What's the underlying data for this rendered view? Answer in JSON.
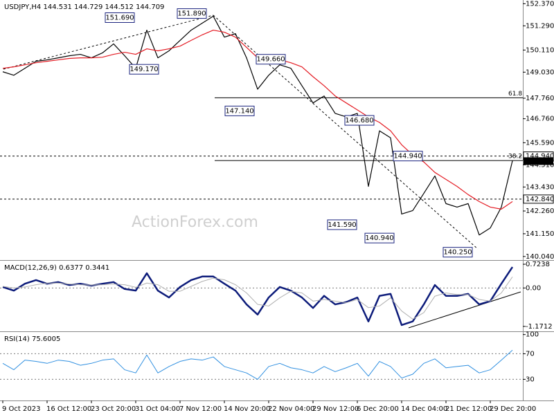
{
  "chart_data": [
    {
      "type": "line",
      "title": "USDJPY,H4 144.531 144.729 144.512 144.709",
      "watermark": "ActionForex.com",
      "categories": [
        "9 Oct 2023",
        null,
        null,
        null,
        "16 Oct 12:00",
        null,
        null,
        null,
        "23 Oct 20:00",
        null,
        null,
        null,
        "31 Oct 04:00",
        null,
        null,
        null,
        "7 Nov 12:00",
        null,
        null,
        null,
        "14 Nov 20:00",
        null,
        null,
        null,
        "22 Nov 04:00",
        null,
        null,
        null,
        "29 Nov 12:00",
        null,
        null,
        null,
        "6 Dec 20:00",
        null,
        null,
        null,
        "14 Dec 04:00",
        null,
        null,
        null,
        "21 Dec 12:00",
        null,
        null,
        null,
        "29 Dec 20:00",
        null,
        null
      ],
      "series": [
        {
          "color": "#000000",
          "values": [
            149.05,
            148.88,
            149.22,
            149.56,
            149.63,
            149.73,
            149.83,
            149.9,
            149.73,
            149.97,
            150.41,
            149.83,
            149.22,
            151.08,
            149.73,
            150.07,
            150.58,
            151.08,
            151.42,
            151.76,
            150.74,
            150.91,
            149.73,
            148.2,
            148.88,
            149.39,
            149.22,
            148.37,
            147.53,
            147.87,
            147.02,
            146.85,
            147.02,
            143.46,
            146.17,
            145.83,
            142.11,
            142.28,
            143.12,
            143.97,
            142.62,
            142.45,
            142.62,
            141.09,
            141.43,
            142.45,
            144.71
          ]
        },
        {
          "color": "#e41b23",
          "values": [
            149.22,
            149.29,
            149.39,
            149.49,
            149.56,
            149.63,
            149.7,
            149.73,
            149.73,
            149.76,
            149.9,
            150.0,
            149.9,
            150.17,
            150.07,
            150.17,
            150.3,
            150.58,
            150.85,
            151.08,
            150.98,
            150.74,
            150.24,
            149.73,
            149.56,
            149.63,
            149.49,
            149.29,
            148.81,
            148.37,
            147.87,
            147.53,
            147.19,
            146.85,
            146.58,
            146.17,
            145.49,
            144.99,
            144.65,
            144.14,
            143.8,
            143.46,
            143.06,
            142.72,
            142.45,
            142.35,
            142.72
          ]
        }
      ],
      "ylim": [
        139.9,
        152.55
      ],
      "yticks": [
        {
          "value": 152.37,
          "label": "152.370"
        },
        {
          "value": 151.29,
          "label": "151.290"
        },
        {
          "value": 150.11,
          "label": "150.110"
        },
        {
          "value": 149.03,
          "label": "149.030"
        },
        {
          "value": 147.76,
          "label": "147.760"
        },
        {
          "value": 146.76,
          "label": "146.760"
        },
        {
          "value": 145.59,
          "label": "145.590"
        },
        {
          "value": 144.51,
          "label": "144.510"
        },
        {
          "value": 143.43,
          "label": "143.430"
        },
        {
          "value": 142.26,
          "label": "142.260"
        },
        {
          "value": 141.15,
          "label": "141.150"
        },
        {
          "value": 140.04,
          "label": "140.040"
        }
      ],
      "fib_levels": [
        {
          "ratio": 61.8,
          "price": 147.78
        },
        {
          "ratio": 38.2,
          "price": 144.72
        }
      ],
      "levels": [
        {
          "value": 144.94,
          "label": "144.940"
        },
        {
          "value": 142.84,
          "label": "142.840"
        }
      ],
      "current": {
        "value": 144.709,
        "label": "144.709"
      },
      "annotations": [
        {
          "value": 151.69,
          "label": "151.690"
        },
        {
          "value": 151.89,
          "label": "151.890"
        },
        {
          "value": 149.17,
          "label": "149.170"
        },
        {
          "value": 149.66,
          "label": "149.660"
        },
        {
          "value": 147.14,
          "label": "147.140"
        },
        {
          "value": 146.68,
          "label": "146.680"
        },
        {
          "value": 144.94,
          "label": "144.940"
        },
        {
          "value": 141.59,
          "label": "141.590"
        },
        {
          "value": 140.94,
          "label": "140.940"
        },
        {
          "value": 140.25,
          "label": "140.250"
        }
      ]
    },
    {
      "type": "line",
      "title": "MACD(12,26,9) 0.6377 0.3441",
      "series": [
        {
          "color": "#0c1b7a",
          "values": [
            0.03,
            -0.08,
            0.13,
            0.24,
            0.13,
            0.18,
            0.09,
            0.13,
            0.07,
            0.13,
            0.18,
            -0.03,
            -0.08,
            0.45,
            -0.08,
            -0.29,
            0.03,
            0.24,
            0.35,
            0.35,
            0.13,
            -0.08,
            -0.5,
            -0.81,
            -0.29,
            0.03,
            -0.08,
            -0.29,
            -0.61,
            -0.24,
            -0.5,
            -0.43,
            -0.29,
            -1.02,
            -0.24,
            -0.18,
            -1.13,
            -1.02,
            -0.5,
            0.09,
            -0.24,
            -0.24,
            -0.18,
            -0.5,
            -0.4,
            0.13,
            0.64
          ]
        },
        {
          "color": "#b0b0b0",
          "values": [
            0.05,
            0.0,
            0.03,
            0.1,
            0.15,
            0.15,
            0.12,
            0.1,
            0.09,
            0.1,
            0.12,
            0.1,
            0.02,
            0.15,
            0.1,
            -0.1,
            -0.1,
            0.05,
            0.2,
            0.3,
            0.25,
            0.1,
            -0.15,
            -0.5,
            -0.55,
            -0.3,
            -0.1,
            -0.15,
            -0.4,
            -0.35,
            -0.4,
            -0.45,
            -0.35,
            -0.6,
            -0.55,
            -0.3,
            -0.7,
            -0.95,
            -0.75,
            -0.25,
            -0.15,
            -0.2,
            -0.2,
            -0.35,
            -0.4,
            -0.15,
            0.34
          ]
        }
      ],
      "ylim": [
        -1.3,
        0.83
      ],
      "yticks": [
        0.7238,
        {
          "value": 0,
          "label": "0.00"
        },
        -1.1712
      ],
      "ref_lines": [
        0
      ]
    },
    {
      "type": "line",
      "title": "RSI(14) 75.6005",
      "series": [
        {
          "color": "#2f8fe0",
          "values": [
            55,
            45,
            60,
            58,
            55,
            60,
            58,
            52,
            55,
            60,
            62,
            45,
            40,
            68,
            40,
            50,
            58,
            62,
            60,
            65,
            50,
            45,
            40,
            30,
            50,
            55,
            48,
            45,
            40,
            50,
            42,
            48,
            55,
            35,
            58,
            50,
            32,
            38,
            55,
            62,
            48,
            50,
            52,
            40,
            45,
            60,
            75.6
          ]
        }
      ],
      "ylim": [
        -2,
        104
      ],
      "yticks": [
        100,
        70,
        30
      ],
      "ref_lines": [
        70,
        30
      ]
    }
  ]
}
